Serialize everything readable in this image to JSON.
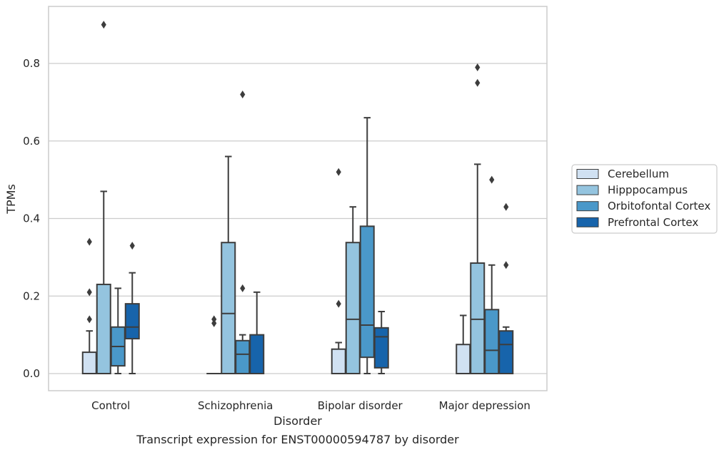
{
  "chart_data": {
    "type": "box",
    "title": "",
    "caption": "Transcript expression for ENST00000594787 by disorder",
    "xlabel": "Disorder",
    "ylabel": "TPMs",
    "ylim": [
      -0.045,
      0.945
    ],
    "yticks": [
      0.0,
      0.2,
      0.4,
      0.6,
      0.8
    ],
    "ytick_labels": [
      "0.0",
      "0.2",
      "0.4",
      "0.6",
      "0.8"
    ],
    "grid": "horizontal",
    "legend_position": "right",
    "categories": [
      "Control",
      "Schizophrenia",
      "Bipolar disorder",
      "Major depression"
    ],
    "series": [
      {
        "name": "Cerebellum",
        "color": "#d0e1f2",
        "boxes": [
          {
            "whisker_low": 0.0,
            "q1": 0.0,
            "median": 0.0,
            "q3": 0.055,
            "whisker_high": 0.11,
            "outliers": [
              0.14,
              0.21,
              0.34
            ]
          },
          {
            "whisker_low": 0.0,
            "q1": 0.0,
            "median": 0.0,
            "q3": 0.0,
            "whisker_high": 0.0,
            "outliers": [
              0.13,
              0.14
            ]
          },
          {
            "whisker_low": 0.0,
            "q1": 0.0,
            "median": 0.0,
            "q3": 0.063,
            "whisker_high": 0.08,
            "outliers": [
              0.18,
              0.52
            ]
          },
          {
            "whisker_low": 0.0,
            "q1": 0.0,
            "median": 0.0,
            "q3": 0.075,
            "whisker_high": 0.15,
            "outliers": []
          }
        ]
      },
      {
        "name": "Hipppocampus",
        "color": "#94c4df",
        "boxes": [
          {
            "whisker_low": 0.0,
            "q1": 0.0,
            "median": 0.0,
            "q3": 0.23,
            "whisker_high": 0.47,
            "outliers": [
              0.9
            ]
          },
          {
            "whisker_low": 0.0,
            "q1": 0.0,
            "median": 0.155,
            "q3": 0.338,
            "whisker_high": 0.56,
            "outliers": []
          },
          {
            "whisker_low": 0.0,
            "q1": 0.0,
            "median": 0.14,
            "q3": 0.338,
            "whisker_high": 0.43,
            "outliers": []
          },
          {
            "whisker_low": 0.0,
            "q1": 0.0,
            "median": 0.14,
            "q3": 0.285,
            "whisker_high": 0.54,
            "outliers": [
              0.75,
              0.79
            ]
          }
        ]
      },
      {
        "name": "Orbitofontal Cortex",
        "color": "#4a98c9",
        "boxes": [
          {
            "whisker_low": 0.0,
            "q1": 0.02,
            "median": 0.07,
            "q3": 0.12,
            "whisker_high": 0.22,
            "outliers": []
          },
          {
            "whisker_low": 0.0,
            "q1": 0.0,
            "median": 0.05,
            "q3": 0.085,
            "whisker_high": 0.1,
            "outliers": [
              0.22,
              0.72
            ]
          },
          {
            "whisker_low": 0.0,
            "q1": 0.042,
            "median": 0.125,
            "q3": 0.38,
            "whisker_high": 0.66,
            "outliers": []
          },
          {
            "whisker_low": 0.0,
            "q1": 0.0,
            "median": 0.06,
            "q3": 0.165,
            "whisker_high": 0.28,
            "outliers": [
              0.5
            ]
          }
        ]
      },
      {
        "name": "Prefrontal Cortex",
        "color": "#1764ab",
        "boxes": [
          {
            "whisker_low": 0.0,
            "q1": 0.09,
            "median": 0.12,
            "q3": 0.18,
            "whisker_high": 0.26,
            "outliers": [
              0.33
            ]
          },
          {
            "whisker_low": 0.0,
            "q1": 0.0,
            "median": 0.0,
            "q3": 0.1,
            "whisker_high": 0.21,
            "outliers": []
          },
          {
            "whisker_low": 0.0,
            "q1": 0.015,
            "median": 0.095,
            "q3": 0.118,
            "whisker_high": 0.16,
            "outliers": []
          },
          {
            "whisker_low": 0.0,
            "q1": 0.0,
            "median": 0.075,
            "q3": 0.11,
            "whisker_high": 0.12,
            "outliers": [
              0.28,
              0.43
            ]
          }
        ]
      }
    ]
  }
}
